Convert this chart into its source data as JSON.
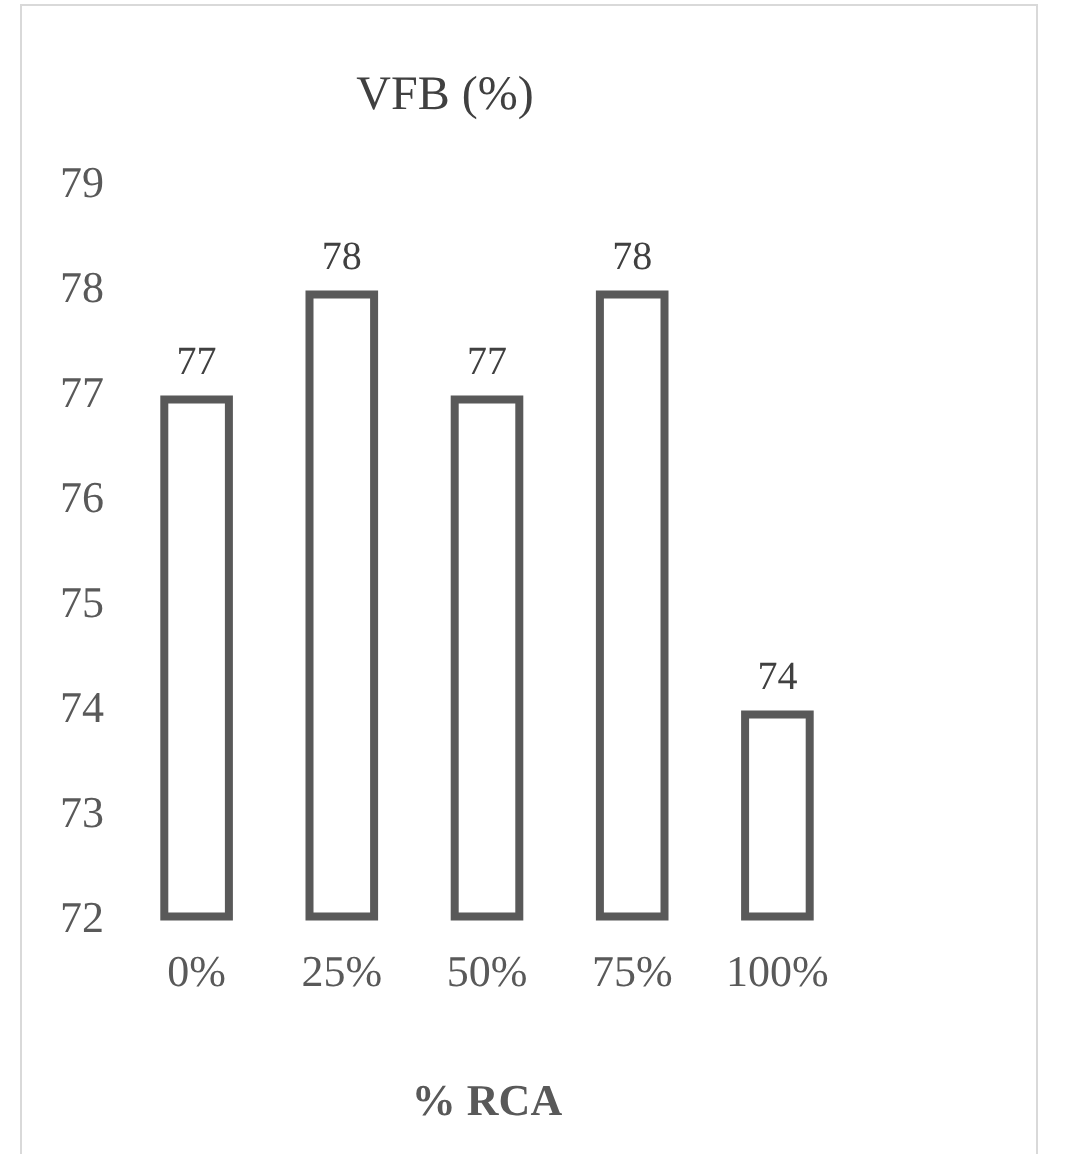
{
  "chart_data": {
    "type": "bar",
    "title": "VFB (%)",
    "xlabel": "% RCA",
    "categories": [
      "0%",
      "25%",
      "50%",
      "75%",
      "100%"
    ],
    "values": [
      77,
      78,
      77,
      78,
      74
    ],
    "color": "#595959",
    "ylim": [
      72,
      79
    ],
    "yticks": [
      72,
      73,
      74,
      75,
      76,
      77,
      78,
      79
    ],
    "grid": false,
    "legend": false,
    "data_labels": true
  }
}
